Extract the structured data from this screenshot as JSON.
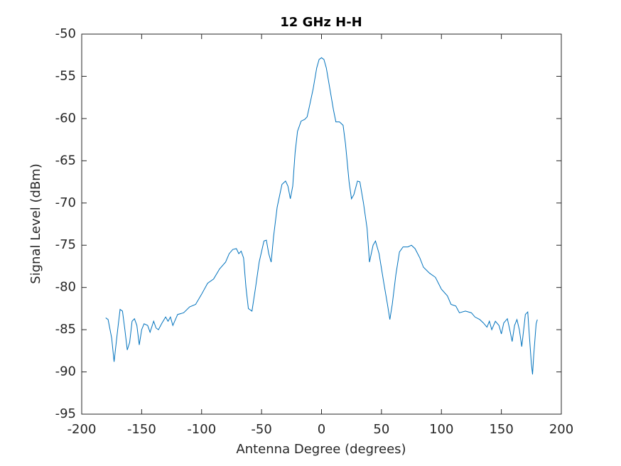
{
  "chart_data": {
    "type": "line",
    "title": "12 GHz H-H",
    "x_label": "Antenna Degree (degrees)",
    "y_label": "Signal Level (dBm)",
    "x": [
      -180,
      -178,
      -175,
      -173,
      -170,
      -168,
      -166,
      -164,
      -162,
      -160,
      -158,
      -156,
      -154,
      -152,
      -150,
      -148,
      -145,
      -143,
      -140,
      -138,
      -136,
      -133,
      -130,
      -128,
      -126,
      -124,
      -120,
      -115,
      -110,
      -105,
      -100,
      -95,
      -90,
      -85,
      -80,
      -77,
      -74,
      -71,
      -69,
      -67,
      -65,
      -63,
      -61,
      -58,
      -55,
      -52,
      -48,
      -46,
      -44,
      -42,
      -40,
      -37,
      -33,
      -30,
      -28,
      -26,
      -24,
      -22,
      -20,
      -17,
      -14,
      -12,
      -10,
      -7,
      -4,
      -2,
      0,
      2,
      4,
      7,
      10,
      12,
      15,
      18,
      20,
      23,
      25,
      27,
      30,
      32,
      35,
      38,
      40,
      43,
      45,
      48,
      52,
      55,
      57,
      59,
      62,
      65,
      68,
      72,
      75,
      78,
      82,
      85,
      90,
      95,
      100,
      105,
      108,
      112,
      115,
      120,
      125,
      128,
      132,
      135,
      138,
      140,
      142,
      145,
      148,
      150,
      152,
      155,
      157,
      159,
      161,
      163,
      165,
      167,
      169,
      170,
      172,
      173,
      175,
      176,
      177,
      179,
      180
    ],
    "series": [
      {
        "name": "12 GHz H-H",
        "color": "#0072bd",
        "values": [
          -83.6,
          -83.8,
          -86,
          -88.8,
          -85,
          -82.6,
          -82.8,
          -85,
          -87.4,
          -86.5,
          -84,
          -83.7,
          -84.5,
          -86.8,
          -85,
          -84.3,
          -84.5,
          -85.3,
          -84,
          -84.8,
          -85,
          -84.2,
          -83.5,
          -84,
          -83.5,
          -84.5,
          -83.2,
          -83,
          -82.3,
          -82,
          -80.8,
          -79.5,
          -79,
          -77.8,
          -77,
          -76,
          -75.5,
          -75.4,
          -76,
          -75.7,
          -76.5,
          -80,
          -82.5,
          -82.8,
          -80,
          -77,
          -74.5,
          -74.4,
          -76,
          -77,
          -74,
          -70.5,
          -67.8,
          -67.4,
          -68,
          -69.5,
          -68,
          -64,
          -61.5,
          -60.3,
          -60.1,
          -59.8,
          -58.5,
          -56.5,
          -54,
          -53,
          -52.8,
          -53,
          -54,
          -56.5,
          -59,
          -60.4,
          -60.4,
          -60.8,
          -63,
          -67.5,
          -69.5,
          -69,
          -67.4,
          -67.5,
          -70,
          -73,
          -77,
          -75,
          -74.5,
          -76,
          -79.5,
          -82,
          -83.8,
          -82,
          -78.5,
          -75.8,
          -75.2,
          -75.2,
          -75,
          -75.4,
          -76.5,
          -77.6,
          -78.3,
          -78.8,
          -80.2,
          -81,
          -82,
          -82.2,
          -83,
          -82.8,
          -83,
          -83.5,
          -83.8,
          -84.2,
          -84.7,
          -84,
          -85,
          -84,
          -84.5,
          -85.5,
          -84.2,
          -83.7,
          -85,
          -86.4,
          -84.5,
          -83.8,
          -85,
          -87,
          -84.5,
          -83.2,
          -82.9,
          -85,
          -89,
          -90.3,
          -88,
          -84.3,
          -83.8
        ]
      }
    ],
    "xlim": [
      -200,
      200
    ],
    "xticks": [
      -200,
      -150,
      -100,
      -50,
      0,
      50,
      100,
      150,
      200
    ],
    "ylim": [
      -95,
      -50
    ],
    "yticks": [
      -95,
      -90,
      -85,
      -80,
      -75,
      -70,
      -65,
      -60,
      -55,
      -50
    ]
  }
}
